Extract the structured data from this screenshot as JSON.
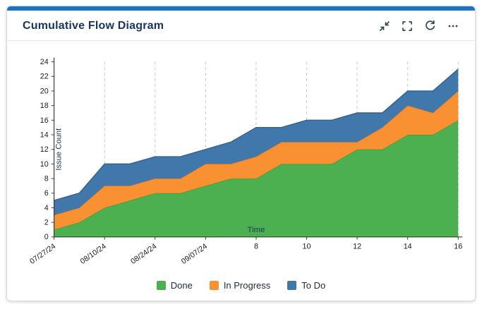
{
  "colors": {
    "accent": "#1a73c8",
    "title": "#17365f",
    "icon": "#33475b"
  },
  "header": {
    "title": "Cumulative Flow Diagram",
    "actions": [
      {
        "label": "collapse",
        "icon": "collapse-arrows-icon"
      },
      {
        "label": "fullscreen",
        "icon": "fullscreen-brackets-icon"
      },
      {
        "label": "refresh",
        "icon": "refresh-icon"
      },
      {
        "label": "more options",
        "icon": "ellipsis-icon"
      }
    ]
  },
  "chart_data": {
    "type": "area",
    "stacked": true,
    "title": "",
    "xlabel": "Time",
    "ylabel": "Issue Count",
    "ylim": [
      0,
      24
    ],
    "grid": "vertical-dashed",
    "legend_position": "bottom",
    "x": [
      0,
      1,
      2,
      3,
      4,
      5,
      6,
      7,
      8,
      9,
      10,
      11,
      12,
      13,
      14,
      15,
      16
    ],
    "y_ticks": [
      0,
      2,
      4,
      6,
      8,
      10,
      12,
      14,
      16,
      18,
      20,
      22,
      24
    ],
    "x_ticks": [
      {
        "pos": 0,
        "label": "07/27/24",
        "rotate": true
      },
      {
        "pos": 2,
        "label": "08/10/24",
        "rotate": true
      },
      {
        "pos": 4,
        "label": "08/24/24",
        "rotate": true
      },
      {
        "pos": 6,
        "label": "09/07/24",
        "rotate": true
      },
      {
        "pos": 8,
        "label": "8"
      },
      {
        "pos": 10,
        "label": "10"
      },
      {
        "pos": 12,
        "label": "12"
      },
      {
        "pos": 14,
        "label": "14"
      },
      {
        "pos": 16,
        "label": "16"
      }
    ],
    "series": [
      {
        "name": "Done",
        "color": "#4caf50",
        "edge": "#3d9c41",
        "values": [
          1,
          2,
          4,
          5,
          6,
          6,
          7,
          8,
          8,
          10,
          10,
          10,
          12,
          12,
          14,
          14,
          16
        ]
      },
      {
        "name": "In Progress",
        "color": "#f99132",
        "edge": "#ef7d1a",
        "values": [
          2,
          2,
          3,
          2,
          2,
          2,
          3,
          2,
          3,
          3,
          3,
          3,
          1,
          3,
          4,
          3,
          4
        ]
      },
      {
        "name": "To Do",
        "color": "#4178ab",
        "edge": "#34618f",
        "values": [
          2,
          2,
          3,
          3,
          3,
          3,
          2,
          3,
          4,
          2,
          3,
          3,
          4,
          2,
          2,
          3,
          3
        ]
      }
    ]
  }
}
